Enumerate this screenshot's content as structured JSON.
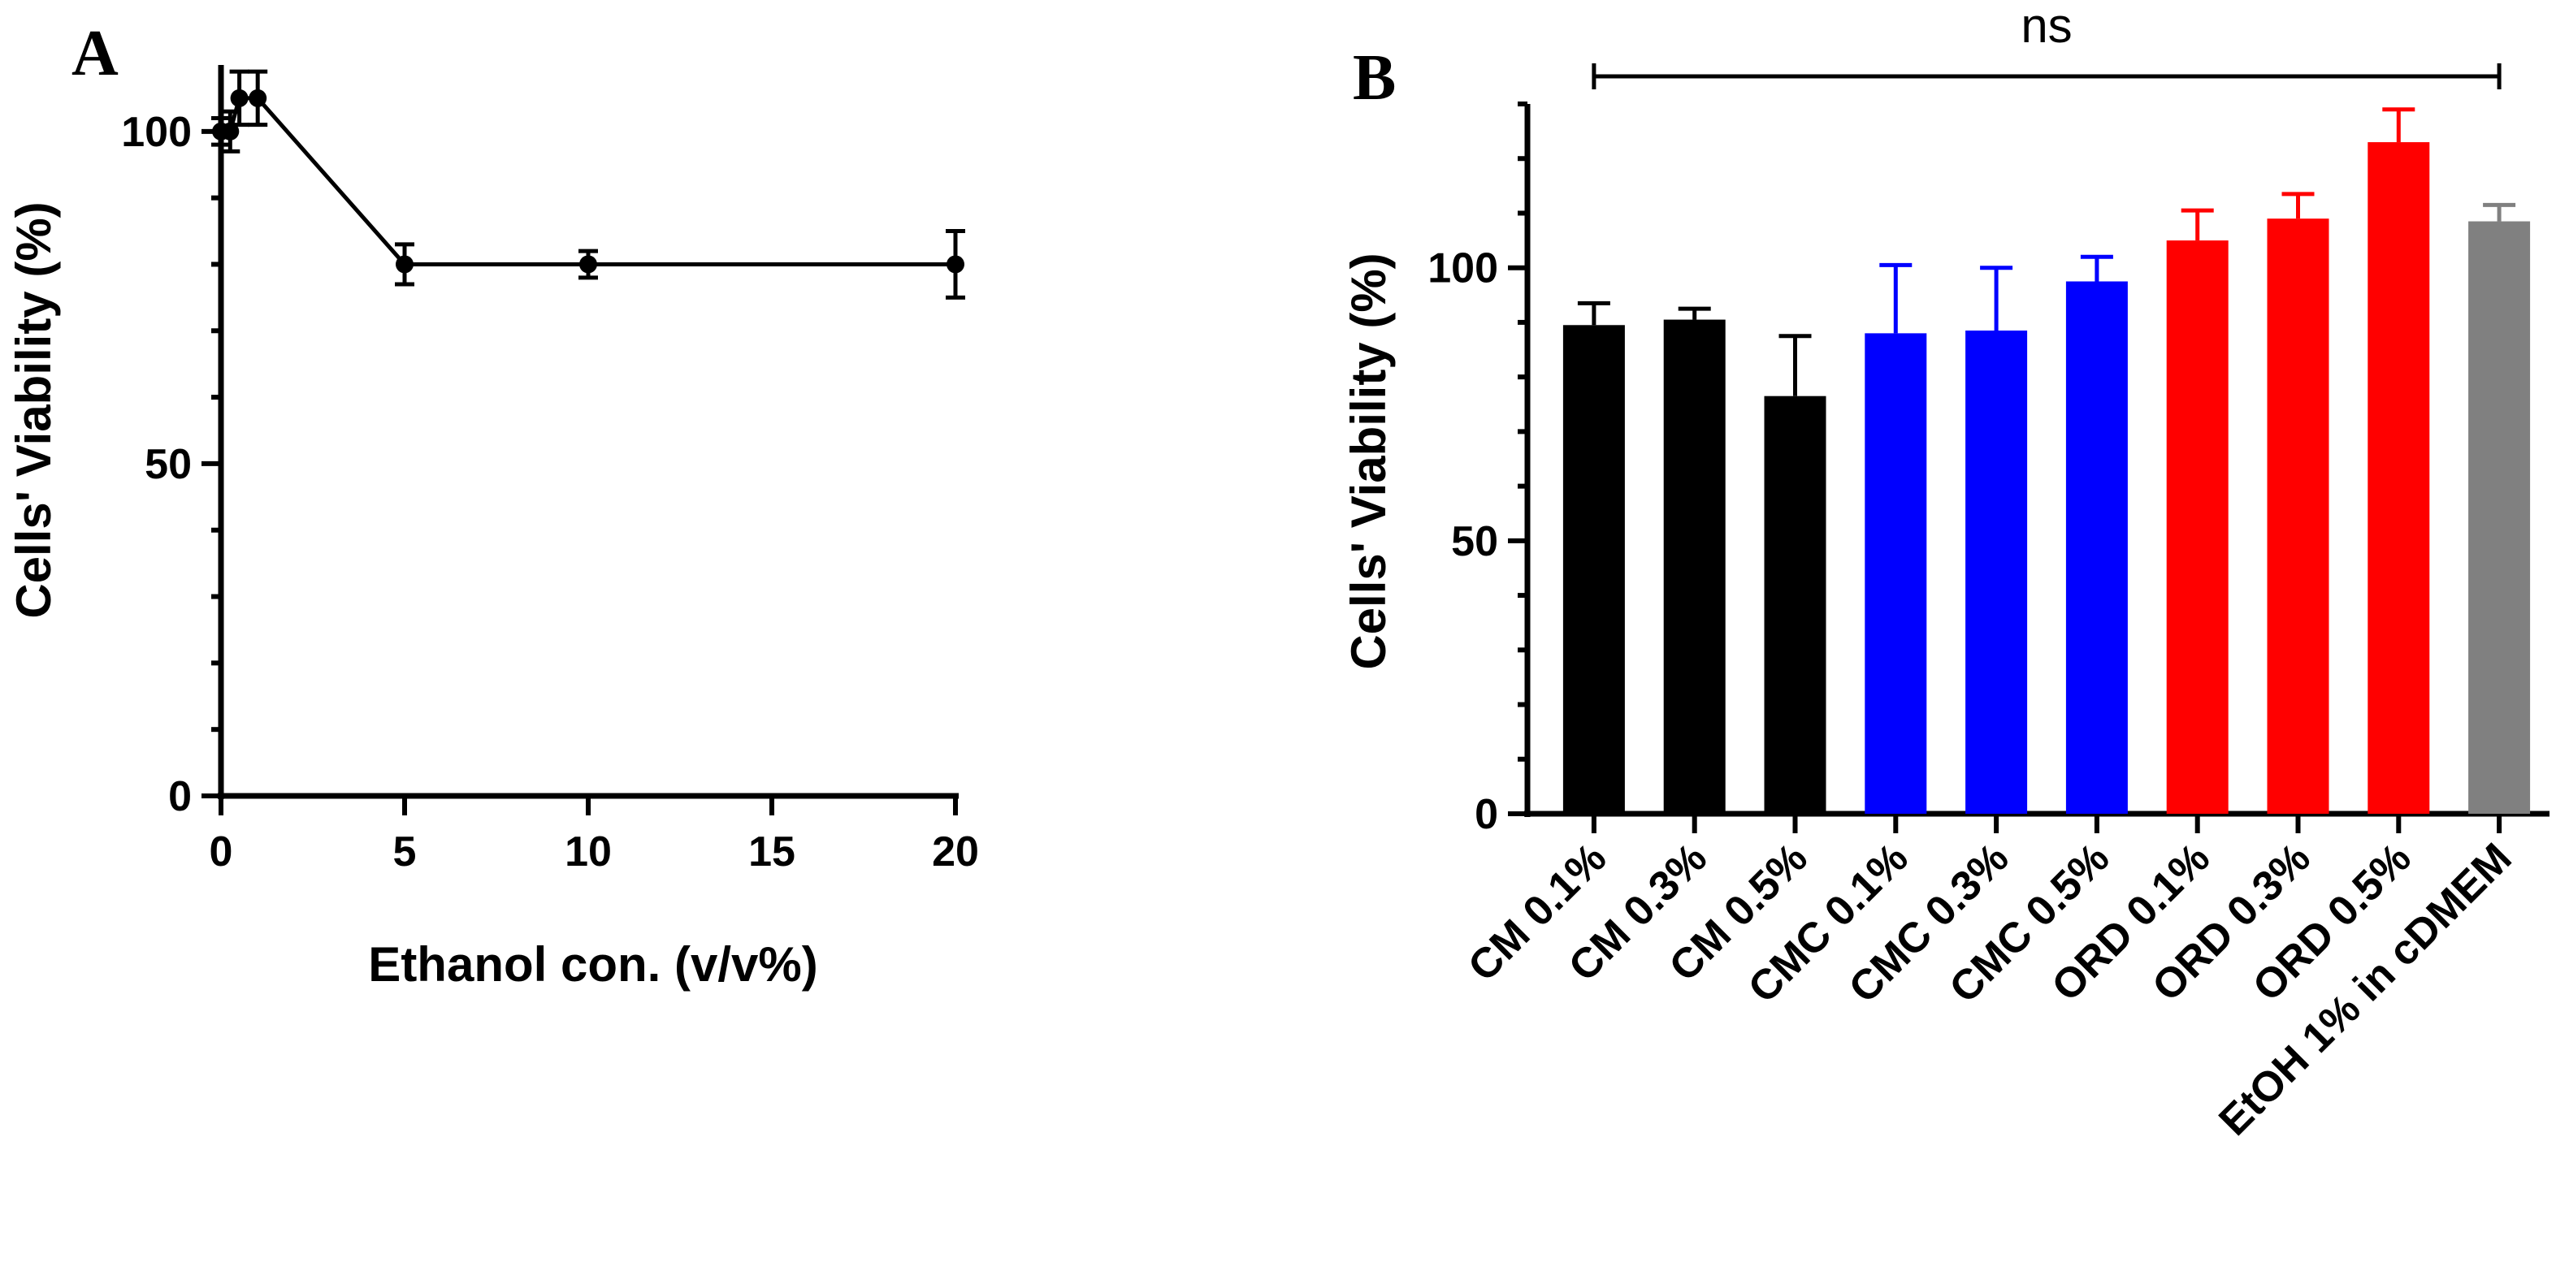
{
  "chart_data": [
    {
      "panel": "A",
      "type": "line",
      "title": "",
      "xlabel": "Ethanol con. (v/v%)",
      "ylabel": "Cells' Viability (%)",
      "xlim": [
        0,
        20
      ],
      "ylim": [
        0,
        110
      ],
      "xticks": [
        0,
        5,
        10,
        15,
        20
      ],
      "yticks": [
        0,
        50,
        100
      ],
      "series": [
        {
          "name": "viability",
          "color": "#000000",
          "x": [
            0,
            0.25,
            0.5,
            1,
            5,
            10,
            20
          ],
          "values": [
            100,
            100,
            105,
            105,
            80,
            80,
            80
          ],
          "errors": [
            2,
            3,
            4,
            4,
            3,
            2,
            5
          ]
        }
      ]
    },
    {
      "panel": "B",
      "type": "bar",
      "title": "",
      "xlabel": "",
      "ylabel": "Cells' Viability (%)",
      "ylim": [
        0,
        130
      ],
      "yticks": [
        0,
        50,
        100
      ],
      "categories": [
        "CM 0.1%",
        "CM 0.3%",
        "CM 0.5%",
        "CMC 0.1%",
        "CMC 0.3%",
        "CMC 0.5%",
        "ORD 0.1%",
        "ORD 0.3%",
        "ORD 0.5%",
        "EtOH 1% in cDMEM"
      ],
      "values": [
        89.5,
        90.5,
        76.5,
        88,
        88.5,
        97.5,
        105,
        109,
        123,
        108.5
      ],
      "errors": [
        4,
        2,
        11,
        12.5,
        11.5,
        4.5,
        5.5,
        4.5,
        6,
        3
      ],
      "colors": [
        "#000000",
        "#000000",
        "#000000",
        "#0000ff",
        "#0000ff",
        "#0000ff",
        "#ff0000",
        "#ff0000",
        "#ff0000",
        "#808080"
      ],
      "significance": {
        "label": "ns",
        "from": 0,
        "to": 9
      }
    }
  ]
}
